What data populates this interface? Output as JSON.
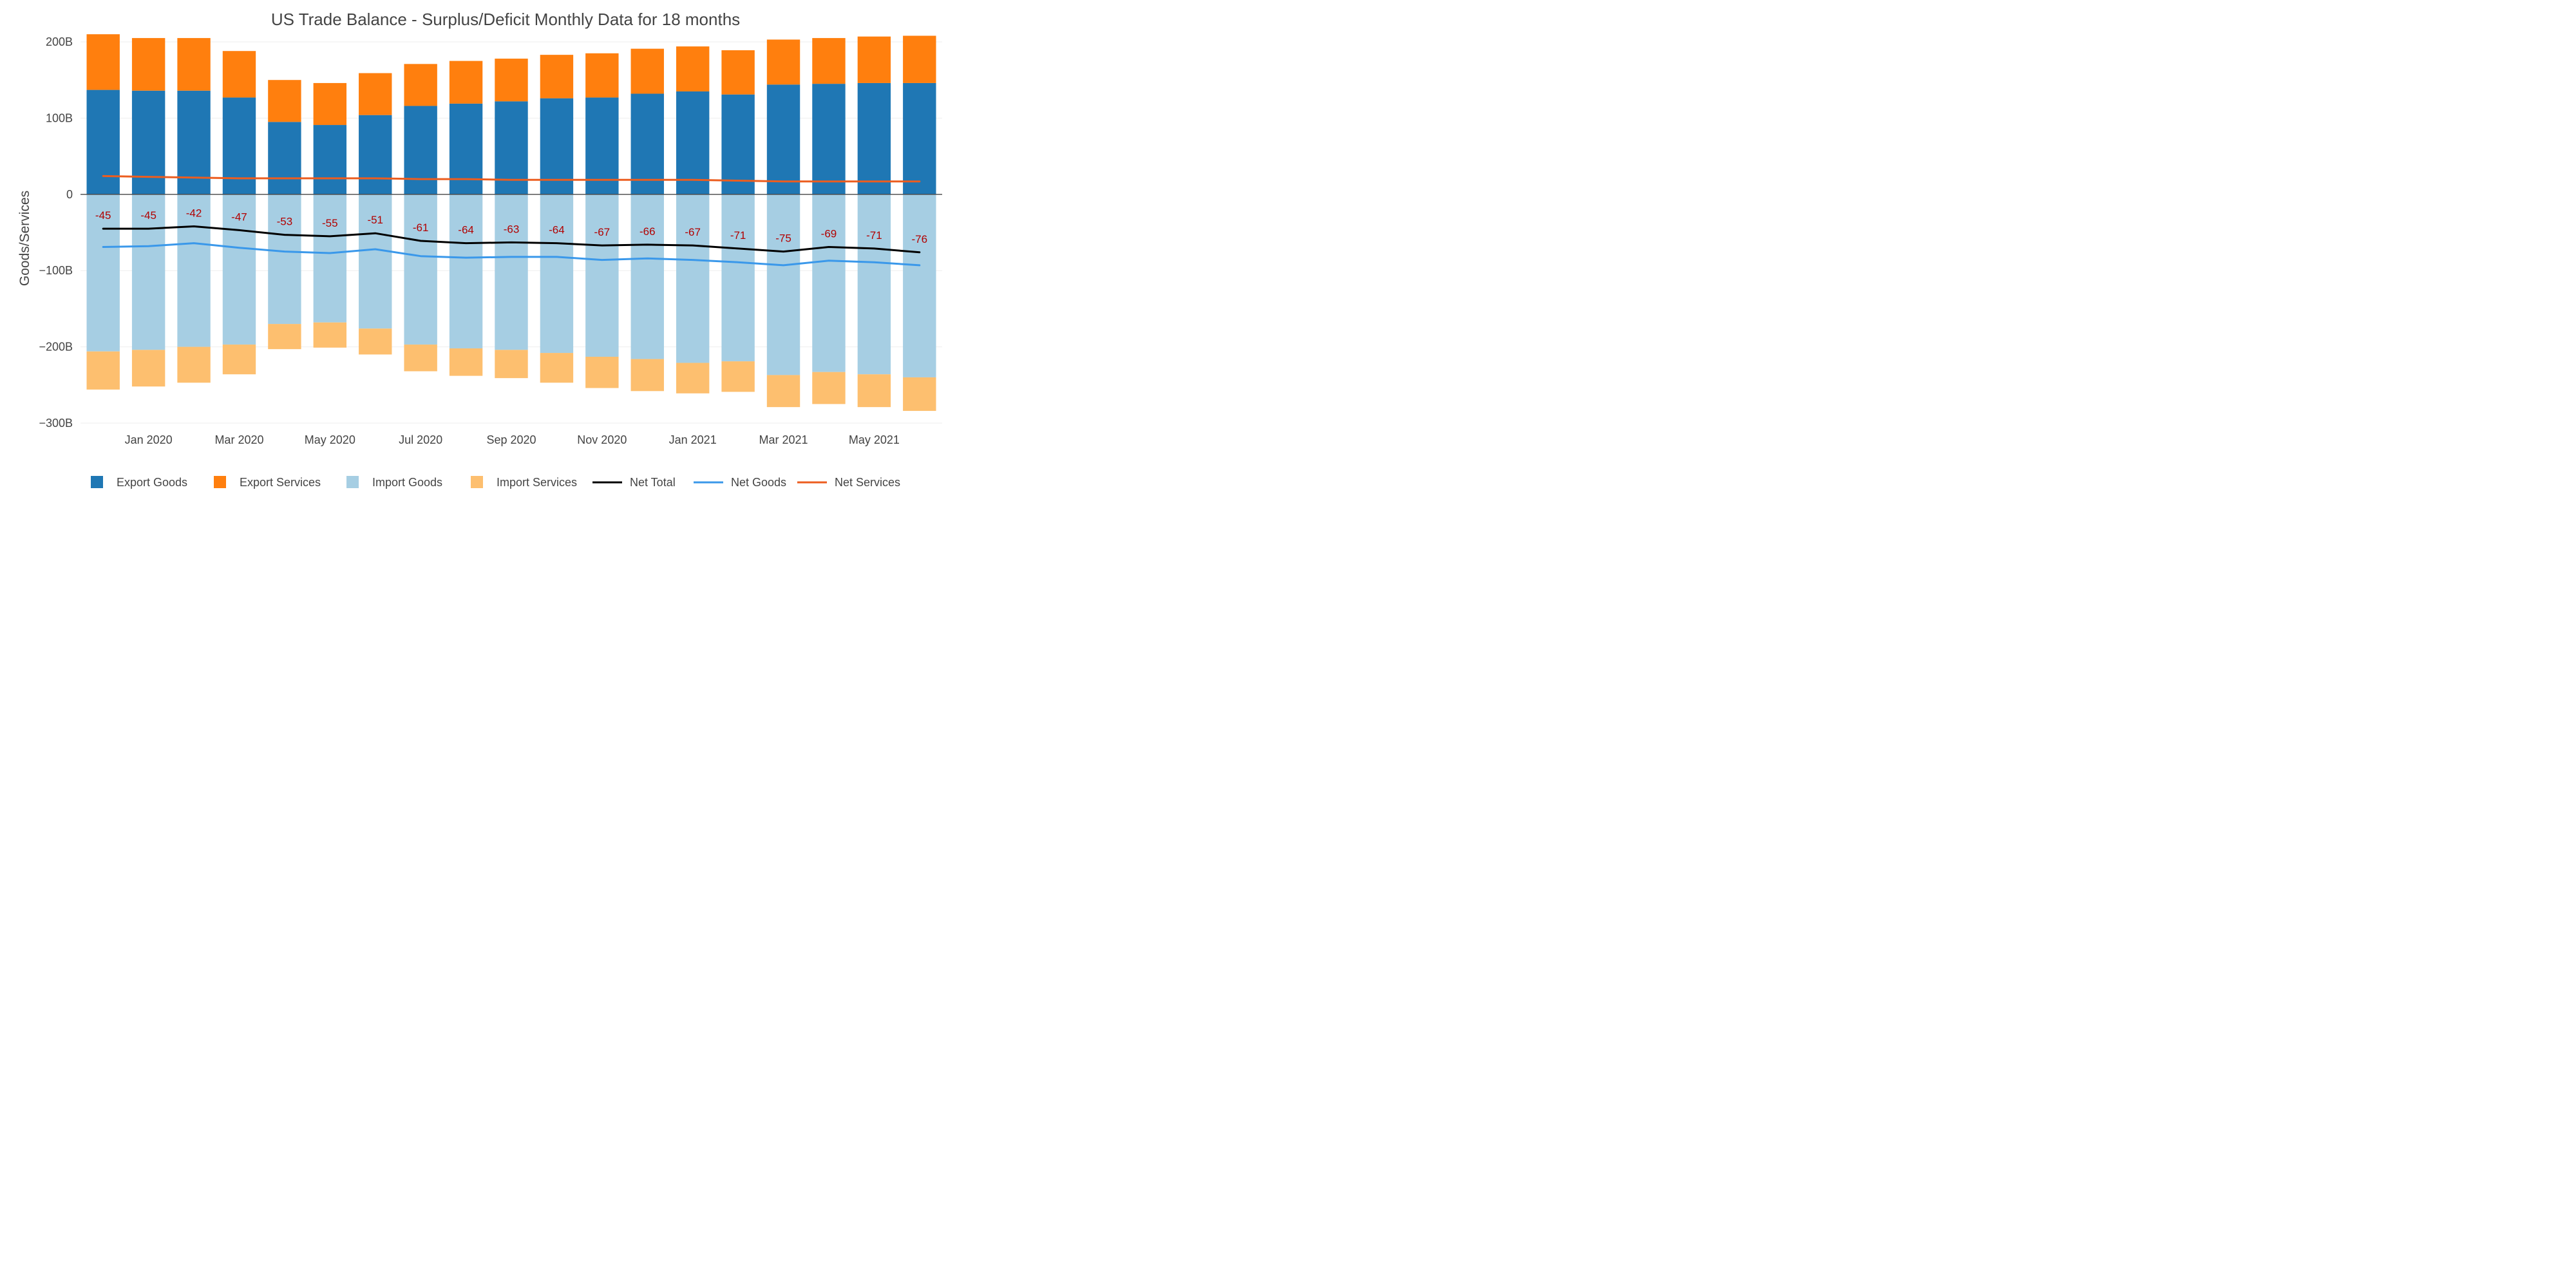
{
  "chart_data": {
    "type": "bar",
    "title": "US Trade Balance - Surplus/Deficit Monthly Data for 18 months",
    "ylabel": "Goods/Services",
    "xlabel": "",
    "ylim": [
      -300,
      200
    ],
    "y_ticks": [
      200,
      100,
      0,
      -100,
      -200,
      -300
    ],
    "y_tick_labels": [
      "200B",
      "100B",
      "0",
      "−100B",
      "−200B",
      "−300B"
    ],
    "x_tick_labels": [
      "Jan 2020",
      "Mar 2020",
      "May 2020",
      "Jul 2020",
      "Sep 2020",
      "Nov 2020",
      "Jan 2021",
      "Mar 2021",
      "May 2021"
    ],
    "x_tick_months": [
      "2020-01",
      "2020-03",
      "2020-05",
      "2020-07",
      "2020-09",
      "2020-11",
      "2021-01",
      "2021-03",
      "2021-05"
    ],
    "months": [
      "2019-12",
      "2020-01",
      "2020-02",
      "2020-03",
      "2020-04",
      "2020-05",
      "2020-06",
      "2020-07",
      "2020-08",
      "2020-09",
      "2020-10",
      "2020-11",
      "2020-12",
      "2021-01",
      "2021-02",
      "2021-03",
      "2021-04",
      "2021-05",
      "2021-06"
    ],
    "grid": true,
    "legend_position": "bottom",
    "unit": "B",
    "series": [
      {
        "name": "Export Goods",
        "kind": "bar",
        "color": "#1f77b4",
        "values": [
          137,
          136,
          136,
          127,
          95,
          91,
          104,
          116,
          119,
          122,
          126,
          127,
          132,
          135,
          131,
          144,
          145,
          146,
          146
        ]
      },
      {
        "name": "Export Services",
        "kind": "bar",
        "color": "#ff7f0e",
        "values": [
          73,
          69,
          69,
          61,
          55,
          55,
          55,
          55,
          56,
          56,
          57,
          58,
          59,
          59,
          58,
          59,
          60,
          61,
          62
        ]
      },
      {
        "name": "Import Goods",
        "kind": "bar",
        "color": "#a6cee3",
        "values": [
          -206,
          -204,
          -200,
          -197,
          -170,
          -168,
          -176,
          -197,
          -202,
          -204,
          -208,
          -213,
          -216,
          -221,
          -219,
          -237,
          -233,
          -236,
          -240
        ]
      },
      {
        "name": "Import Services",
        "kind": "bar",
        "color": "#fdbf6f",
        "values": [
          -50,
          -48,
          -47,
          -39,
          -33,
          -33,
          -34,
          -35,
          -36,
          -37,
          -39,
          -41,
          -42,
          -40,
          -40,
          -42,
          -42,
          -43,
          -44
        ]
      },
      {
        "name": "Net Total",
        "kind": "line",
        "color": "#000000",
        "values": [
          -45,
          -45,
          -42,
          -47,
          -53,
          -55,
          -51,
          -61,
          -64,
          -63,
          -64,
          -67,
          -66,
          -67,
          -71,
          -75,
          -69,
          -71,
          -76
        ]
      },
      {
        "name": "Net Goods",
        "kind": "line",
        "color": "#3a98ea",
        "values": [
          -69,
          -68,
          -64,
          -70,
          -75,
          -77,
          -72,
          -81,
          -83,
          -82,
          -82,
          -86,
          -84,
          -86,
          -89,
          -93,
          -87,
          -89,
          -93
        ]
      },
      {
        "name": "Net Services",
        "kind": "line",
        "color": "#ec5d1f",
        "values": [
          24,
          23,
          22,
          21,
          21,
          21,
          21,
          20,
          20,
          19,
          19,
          19,
          19,
          19,
          18,
          17,
          17,
          17,
          17
        ]
      }
    ],
    "net_total_labels": [
      "-45",
      "-45",
      "-42",
      "-47",
      "-53",
      "-55",
      "-51",
      "-61",
      "-64",
      "-63",
      "-64",
      "-67",
      "-66",
      "-67",
      "-71",
      "-75",
      "-69",
      "-71",
      "-76"
    ]
  }
}
